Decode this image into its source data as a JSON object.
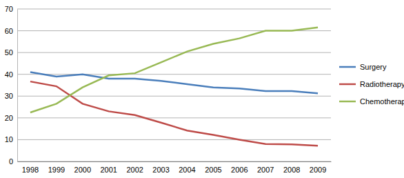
{
  "chart_data": {
    "type": "line",
    "categories": [
      "1998",
      "1999",
      "2000",
      "2001",
      "2002",
      "2003",
      "2004",
      "2005",
      "2006",
      "2007",
      "2008",
      "2009"
    ],
    "series": [
      {
        "name": "Surgery",
        "color": "#4a7ebb",
        "values": [
          41,
          39,
          40,
          38,
          38,
          37,
          35.5,
          34,
          33.5,
          32.3,
          32.3,
          31.3
        ]
      },
      {
        "name": "Radiotherapy",
        "color": "#be4b48",
        "values": [
          36.7,
          34.5,
          26.5,
          23,
          21.3,
          17.8,
          14.2,
          12.2,
          10,
          8,
          7.8,
          7.2
        ]
      },
      {
        "name": "Chemotherapy",
        "color": "#98b954",
        "values": [
          22.5,
          26.5,
          34,
          39.5,
          40.5,
          45.5,
          50.5,
          54,
          56.5,
          60,
          60,
          61.5
        ]
      }
    ],
    "ylim": [
      0,
      70
    ],
    "yticks": [
      0,
      10,
      20,
      30,
      40,
      50,
      60,
      70
    ],
    "grid": true,
    "legend": "right"
  }
}
